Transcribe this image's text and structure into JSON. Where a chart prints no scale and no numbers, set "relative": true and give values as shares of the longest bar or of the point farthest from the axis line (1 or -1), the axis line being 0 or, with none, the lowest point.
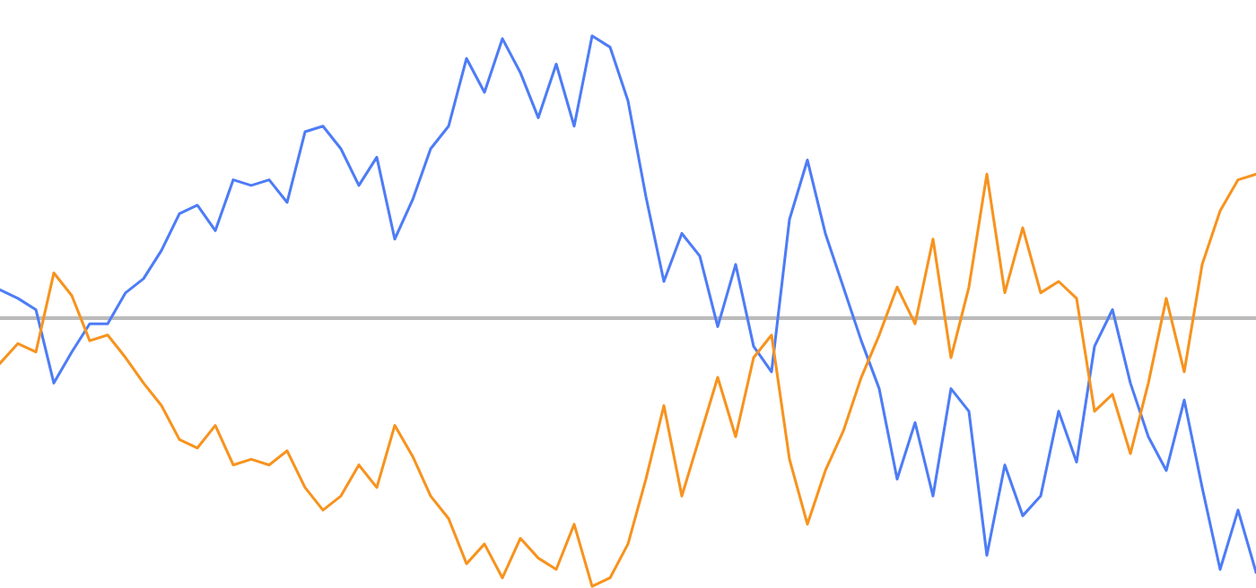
{
  "chart_data": {
    "type": "line",
    "relative": true,
    "line_style": "solid",
    "categories": [
      null,
      null,
      null,
      null,
      null,
      null,
      null,
      null,
      null,
      null,
      null,
      null,
      null,
      null,
      null,
      null,
      null,
      null,
      null,
      null,
      null,
      null,
      null,
      null,
      null,
      null,
      null,
      null,
      null,
      null,
      null,
      null,
      null,
      null,
      null,
      null,
      null,
      null,
      null,
      null,
      null,
      null,
      null,
      null,
      null,
      null,
      null,
      null,
      null,
      null,
      null,
      null,
      null,
      null,
      null,
      null,
      null,
      null,
      null,
      null,
      null,
      null,
      null,
      null,
      null,
      null,
      null,
      null,
      null,
      null,
      null
    ],
    "series": [
      {
        "color": "#4d7cf6",
        "values": [
          0.1,
          0.07,
          0.03,
          -0.23,
          -0.12,
          -0.02,
          -0.02,
          0.09,
          0.14,
          0.24,
          0.37,
          0.4,
          0.31,
          0.49,
          0.47,
          0.49,
          0.41,
          0.66,
          0.68,
          0.6,
          0.47,
          0.57,
          0.28,
          0.42,
          0.6,
          0.68,
          0.92,
          0.8,
          0.99,
          0.87,
          0.71,
          0.9,
          0.68,
          1.0,
          0.96,
          0.77,
          0.43,
          0.13,
          0.3,
          0.22,
          -0.03,
          0.19,
          -0.1,
          -0.19,
          0.35,
          0.56,
          0.3,
          0.11,
          -0.08,
          -0.25,
          -0.57,
          -0.37,
          -0.63,
          -0.25,
          -0.33,
          -0.84,
          -0.52,
          -0.7,
          -0.63,
          -0.33,
          -0.51,
          -0.1,
          0.03,
          -0.23,
          -0.42,
          -0.54,
          -0.29,
          -0.6,
          -0.89,
          -0.68,
          -0.9
        ]
      },
      {
        "color": "#f7931e",
        "values": [
          -0.16,
          -0.09,
          -0.12,
          0.16,
          0.08,
          -0.08,
          -0.06,
          -0.14,
          -0.23,
          -0.31,
          -0.43,
          -0.46,
          -0.38,
          -0.52,
          -0.5,
          -0.52,
          -0.47,
          -0.6,
          -0.68,
          -0.63,
          -0.52,
          -0.6,
          -0.38,
          -0.49,
          -0.63,
          -0.71,
          -0.87,
          -0.8,
          -0.92,
          -0.78,
          -0.85,
          -0.89,
          -0.73,
          -0.95,
          -0.92,
          -0.8,
          -0.57,
          -0.31,
          -0.63,
          -0.42,
          -0.21,
          -0.42,
          -0.14,
          -0.06,
          -0.5,
          -0.73,
          -0.54,
          -0.4,
          -0.21,
          -0.06,
          0.11,
          -0.02,
          0.28,
          -0.14,
          0.11,
          0.51,
          0.09,
          0.32,
          0.09,
          0.13,
          0.07,
          -0.33,
          -0.27,
          -0.48,
          -0.23,
          0.07,
          -0.19,
          0.19,
          0.38,
          0.49,
          0.51
        ]
      }
    ]
  }
}
